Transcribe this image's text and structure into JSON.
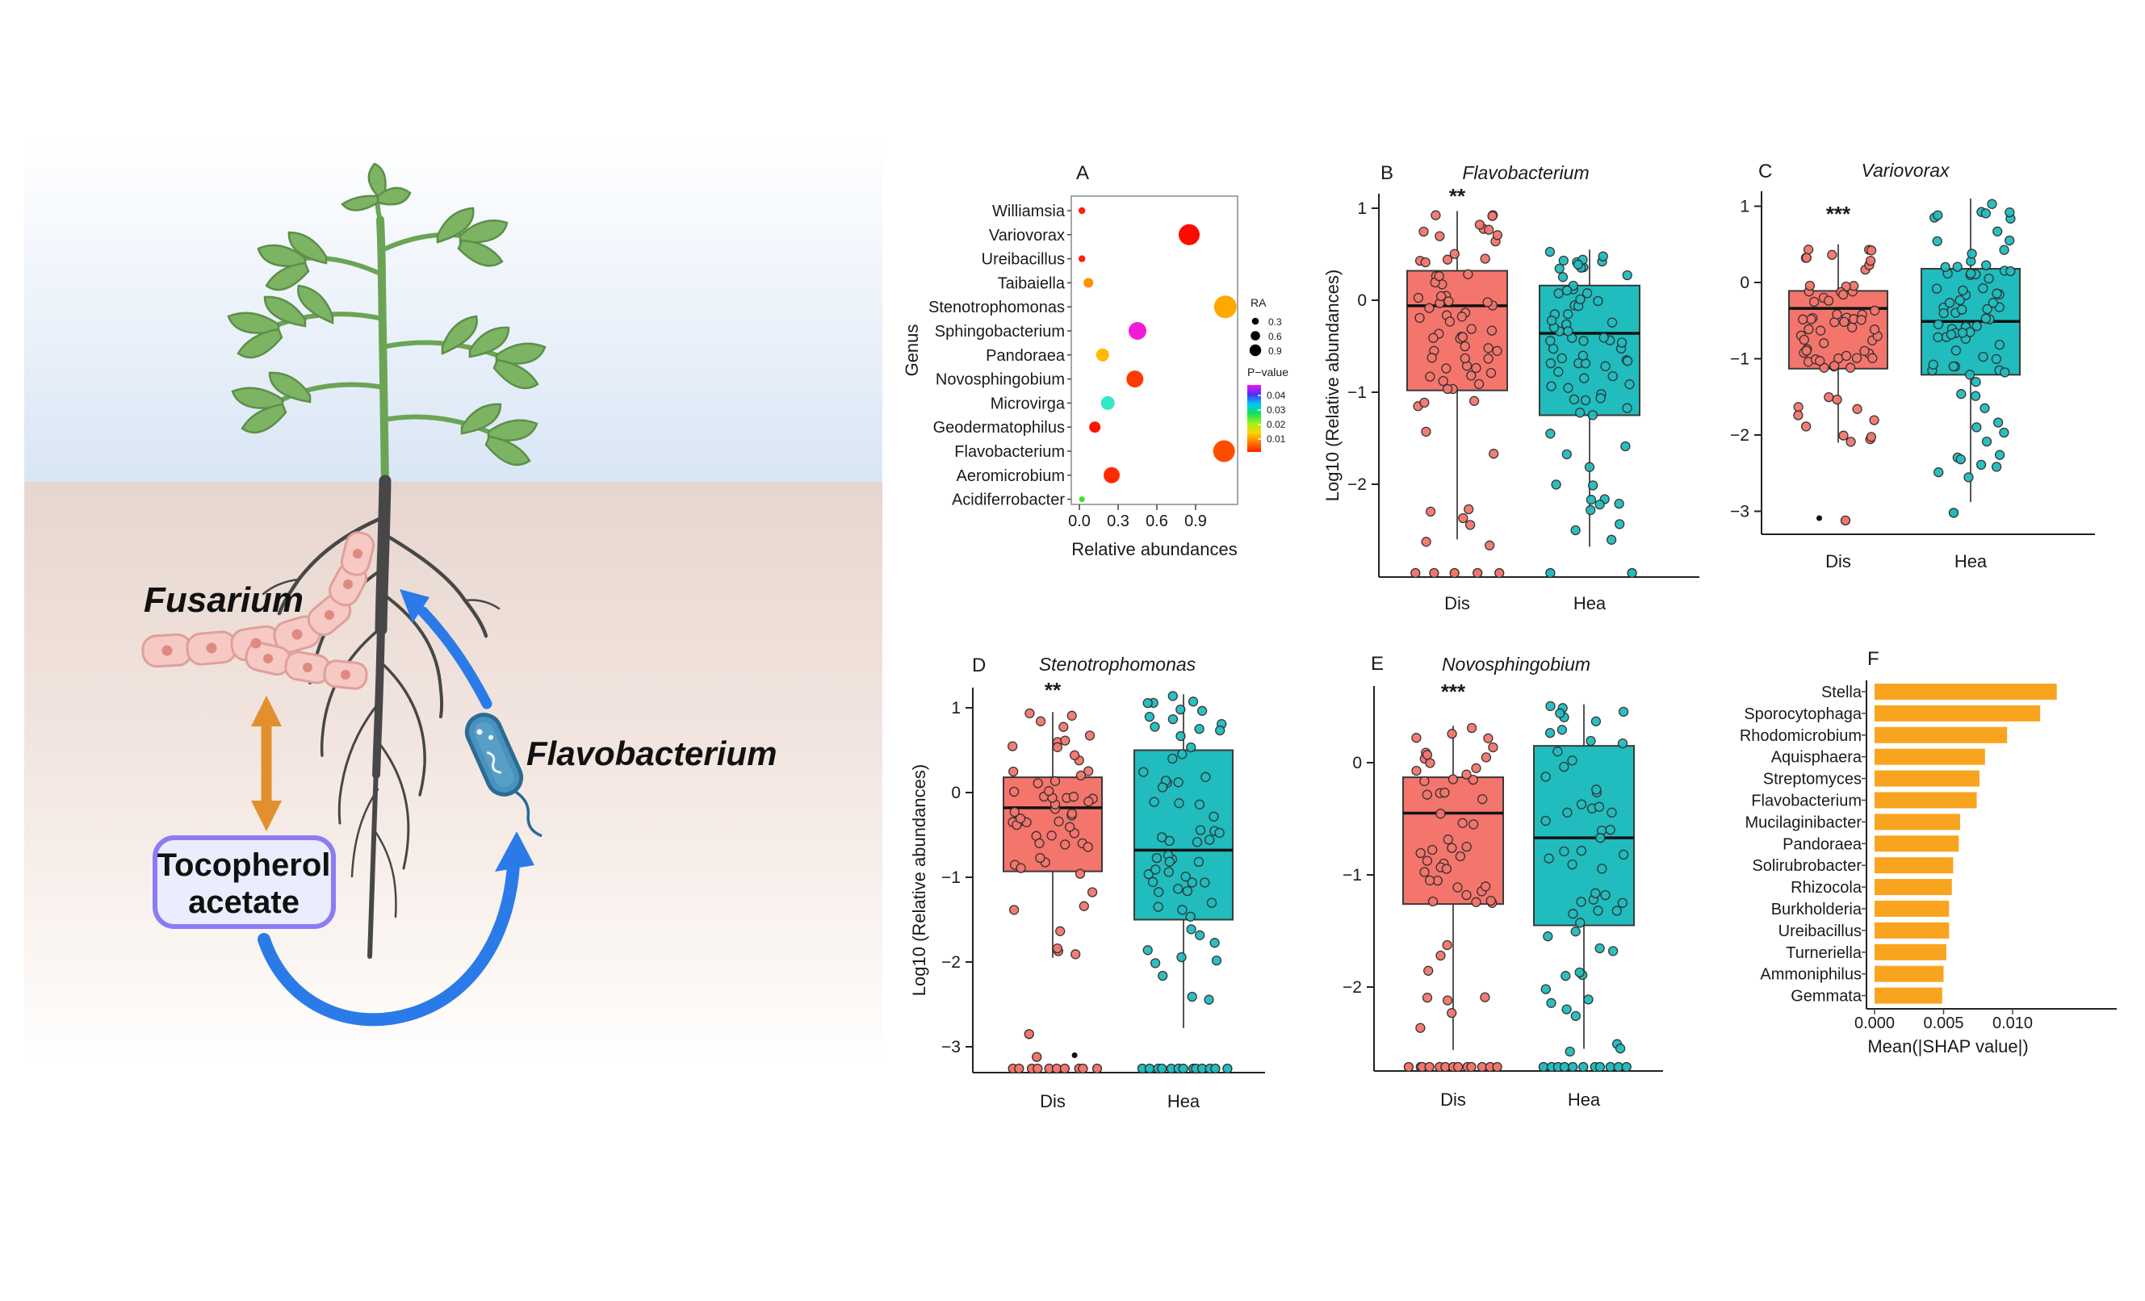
{
  "illustration": {
    "fusarium_label": "Fusarium",
    "flavobacterium_label": "Flavobacterium",
    "tocopherol_line1": "Tocopherol",
    "tocopherol_line2": "acetate",
    "colors": {
      "sky_top": "#FFFFFF",
      "sky_bottom": "#D9E6F4",
      "soil_top": "#E7D6CF",
      "soil_bottom": "#FFFFFF",
      "root": "#474747",
      "stem": "#6CA455",
      "leaf": "#7DB463",
      "leaf_stroke": "#5C8F49",
      "hypha_fill": "#F7C9C4",
      "hypha_stroke": "#DFA09A",
      "hypha_dot": "#DE8A82",
      "arrow_blue": "#2A7BE8",
      "arrow_orange": "#E2902E",
      "box_fill": "#EAEDFD",
      "box_border": "#8B7CF3",
      "bacterium_body": "#4A92BE",
      "bacterium_outline": "#2B6B96"
    }
  },
  "chart_data": [
    {
      "id": "A",
      "type": "scatter",
      "panel_label": "A",
      "xlabel": "Relative abundances",
      "ylabel": "Genus",
      "xticks": [
        "0.0",
        "0.3",
        "0.6",
        "0.9"
      ],
      "xlim": [
        0,
        1.2
      ],
      "grid": false,
      "legend": {
        "size_title": "RA",
        "sizes": [
          "0.3",
          "0.6",
          "0.9"
        ],
        "color_title": "P−value",
        "color_ticks": [
          "0.04",
          "0.03",
          "0.02",
          "0.01"
        ],
        "gradient": [
          "#F213F2",
          "#4A31F8",
          "#00C9F2",
          "#10E35C",
          "#9CF318",
          "#FFD400",
          "#FF7A00",
          "#FF1E00"
        ]
      },
      "points": [
        {
          "genus": "Williamsia",
          "ra": 0.02,
          "dot_r": 4.2,
          "color": "#FF1F0F"
        },
        {
          "genus": "Variovorax",
          "ra": 0.85,
          "dot_r": 13,
          "color": "#FF0A00"
        },
        {
          "genus": "Ureibacillus",
          "ra": 0.02,
          "dot_r": 4.2,
          "color": "#FF2012"
        },
        {
          "genus": "Taibaiella",
          "ra": 0.07,
          "dot_r": 6,
          "color": "#FF9000"
        },
        {
          "genus": "Stenotrophomonas",
          "ra": 1.13,
          "dot_r": 14,
          "color": "#FFA800"
        },
        {
          "genus": "Sphingobacterium",
          "ra": 0.45,
          "dot_r": 11,
          "color": "#F01DD8"
        },
        {
          "genus": "Pandoraea",
          "ra": 0.18,
          "dot_r": 8,
          "color": "#FFB900"
        },
        {
          "genus": "Novosphingobium",
          "ra": 0.43,
          "dot_r": 10.5,
          "color": "#FF3A00"
        },
        {
          "genus": "Microvirga",
          "ra": 0.22,
          "dot_r": 8.5,
          "color": "#35E8C5"
        },
        {
          "genus": "Geodermatophilus",
          "ra": 0.12,
          "dot_r": 7,
          "color": "#FF1200"
        },
        {
          "genus": "Flavobacterium",
          "ra": 1.12,
          "dot_r": 13.5,
          "color": "#FF4D00"
        },
        {
          "genus": "Aeromicrobium",
          "ra": 0.25,
          "dot_r": 10,
          "color": "#FF2B00"
        },
        {
          "genus": "Acidiferrobacter",
          "ra": 0.02,
          "dot_r": 3.5,
          "color": "#3BE227"
        }
      ]
    },
    {
      "id": "B",
      "type": "box",
      "panel_label": "B",
      "title": "Flavobacterium",
      "sig": "**",
      "ylabel": "Log10 (Relative abundances)",
      "yticks": [
        1,
        0,
        -1,
        -2
      ],
      "ylim": [
        1.16,
        -3.0
      ],
      "group_axis_labels": [
        "Dis",
        "Hea"
      ],
      "groups": [
        {
          "name": "Dis",
          "color": "#F4756C",
          "n": 68,
          "seed": 11,
          "stats": {
            "wlow": -2.6,
            "q1": -0.98,
            "med": -0.06,
            "q3": 0.32,
            "whigh": 0.97
          },
          "tail_low": -2.7,
          "bottom_row": 5
        },
        {
          "name": "Hea",
          "color": "#20BCBE",
          "n": 72,
          "seed": 12,
          "stats": {
            "wlow": -2.68,
            "q1": -1.25,
            "med": -0.36,
            "q3": 0.16,
            "whigh": 0.55
          },
          "tail_low": -2.7,
          "bottom_row": 2
        }
      ]
    },
    {
      "id": "C",
      "type": "box",
      "panel_label": "C",
      "title": "Variovorax",
      "sig": "***",
      "ylabel": "",
      "yticks": [
        1,
        0,
        -1,
        -2,
        -3
      ],
      "ylim": [
        1.25,
        -3.3
      ],
      "group_axis_labels": [
        "Dis",
        "Hea"
      ],
      "groups": [
        {
          "name": "Dis",
          "color": "#F4756C",
          "n": 66,
          "seed": 21,
          "stats": {
            "wlow": -2.1,
            "q1": -1.13,
            "med": -0.34,
            "q3": -0.11,
            "whigh": 0.5
          },
          "tail_low": -2.12,
          "bottom_row": 0,
          "outliers": [
            {
              "v": -3.09,
              "color": "#111111",
              "r": 3.5
            },
            {
              "v": -3.12,
              "color": "#F4756C",
              "r": 5.5
            }
          ]
        },
        {
          "name": "Hea",
          "color": "#20BCBE",
          "n": 78,
          "seed": 22,
          "stats": {
            "wlow": -2.88,
            "q1": -1.21,
            "med": -0.51,
            "q3": 0.18,
            "whigh": 1.1
          },
          "tail_low": -2.6,
          "bottom_row": 0,
          "outliers": [
            {
              "v": -3.02,
              "color": "#20BCBE",
              "r": 5.5
            }
          ]
        }
      ]
    },
    {
      "id": "D",
      "type": "box",
      "panel_label": "D",
      "title": "Stenotrophomonas",
      "sig": "**",
      "ylabel": "Log10 (Relative abundances)",
      "yticks": [
        1,
        0,
        -1,
        -2,
        -3
      ],
      "ylim": [
        1.24,
        -3.3
      ],
      "group_axis_labels": [
        "Dis",
        "Hea"
      ],
      "groups": [
        {
          "name": "Dis",
          "color": "#F4756C",
          "n": 56,
          "seed": 31,
          "stats": {
            "wlow": -1.95,
            "q1": -0.93,
            "med": -0.18,
            "q3": 0.18,
            "whigh": 0.95
          },
          "tail_low": -1.98,
          "bottom_row": 10,
          "outliers": [
            {
              "v": -2.85,
              "color": "#F4756C",
              "r": 5.5
            },
            {
              "v": -3.12,
              "color": "#F4756C",
              "r": 5.5
            },
            {
              "v": -3.1,
              "color": "#111111",
              "r": 3.5
            }
          ]
        },
        {
          "name": "Hea",
          "color": "#20BCBE",
          "n": 62,
          "seed": 32,
          "stats": {
            "wlow": -2.78,
            "q1": -1.5,
            "med": -0.68,
            "q3": 0.5,
            "whigh": 1.16
          },
          "tail_low": -2.8,
          "bottom_row": 13
        }
      ]
    },
    {
      "id": "E",
      "type": "box",
      "panel_label": "E",
      "title": "Novosphingobium",
      "sig": "***",
      "ylabel": "",
      "yticks": [
        0,
        -1,
        -2
      ],
      "ylim": [
        0.68,
        -2.75
      ],
      "group_axis_labels": [
        "Dis",
        "Hea"
      ],
      "groups": [
        {
          "name": "Dis",
          "color": "#F4756C",
          "n": 52,
          "seed": 41,
          "stats": {
            "wlow": -2.56,
            "q1": -1.26,
            "med": -0.45,
            "q3": -0.13,
            "whigh": 0.33
          },
          "tail_low": -2.6,
          "bottom_row": 13
        },
        {
          "name": "Hea",
          "color": "#20BCBE",
          "n": 55,
          "seed": 42,
          "stats": {
            "wlow": -2.55,
            "q1": -1.45,
            "med": -0.67,
            "q3": 0.15,
            "whigh": 0.52
          },
          "tail_low": -2.6,
          "bottom_row": 11
        }
      ]
    },
    {
      "id": "F",
      "type": "bar",
      "panel_label": "F",
      "xlabel": "Mean(|SHAP value|)",
      "xticks": [
        "0.000",
        "0.005",
        "0.010"
      ],
      "xtick_values": [
        0,
        0.005,
        0.01
      ],
      "xlim": [
        0,
        0.0136
      ],
      "bar_color": "#F9A41F",
      "categories": [
        "Stella",
        "Sporocytophaga",
        "Rhodomicrobium",
        "Aquisphaera",
        "Streptomyces",
        "Flavobacterium",
        "Mucilaginibacter",
        "Pandoraea",
        "Solirubrobacter",
        "Rhizocola",
        "Burkholderia",
        "Ureibacillus",
        "Turneriella",
        "Ammoniphilus",
        "Gemmata"
      ],
      "values": [
        0.0132,
        0.012,
        0.0096,
        0.008,
        0.0076,
        0.0074,
        0.0062,
        0.0061,
        0.0057,
        0.0056,
        0.0054,
        0.0054,
        0.0052,
        0.005,
        0.0049
      ]
    }
  ],
  "style_colors": {
    "dis_fill": "#F4756C",
    "hea_fill": "#20BCBE",
    "box_stroke": "#3A3A3A",
    "median": "#111111",
    "whisker": "#555555",
    "axis": "#222222",
    "text": "#1A1A1A"
  }
}
